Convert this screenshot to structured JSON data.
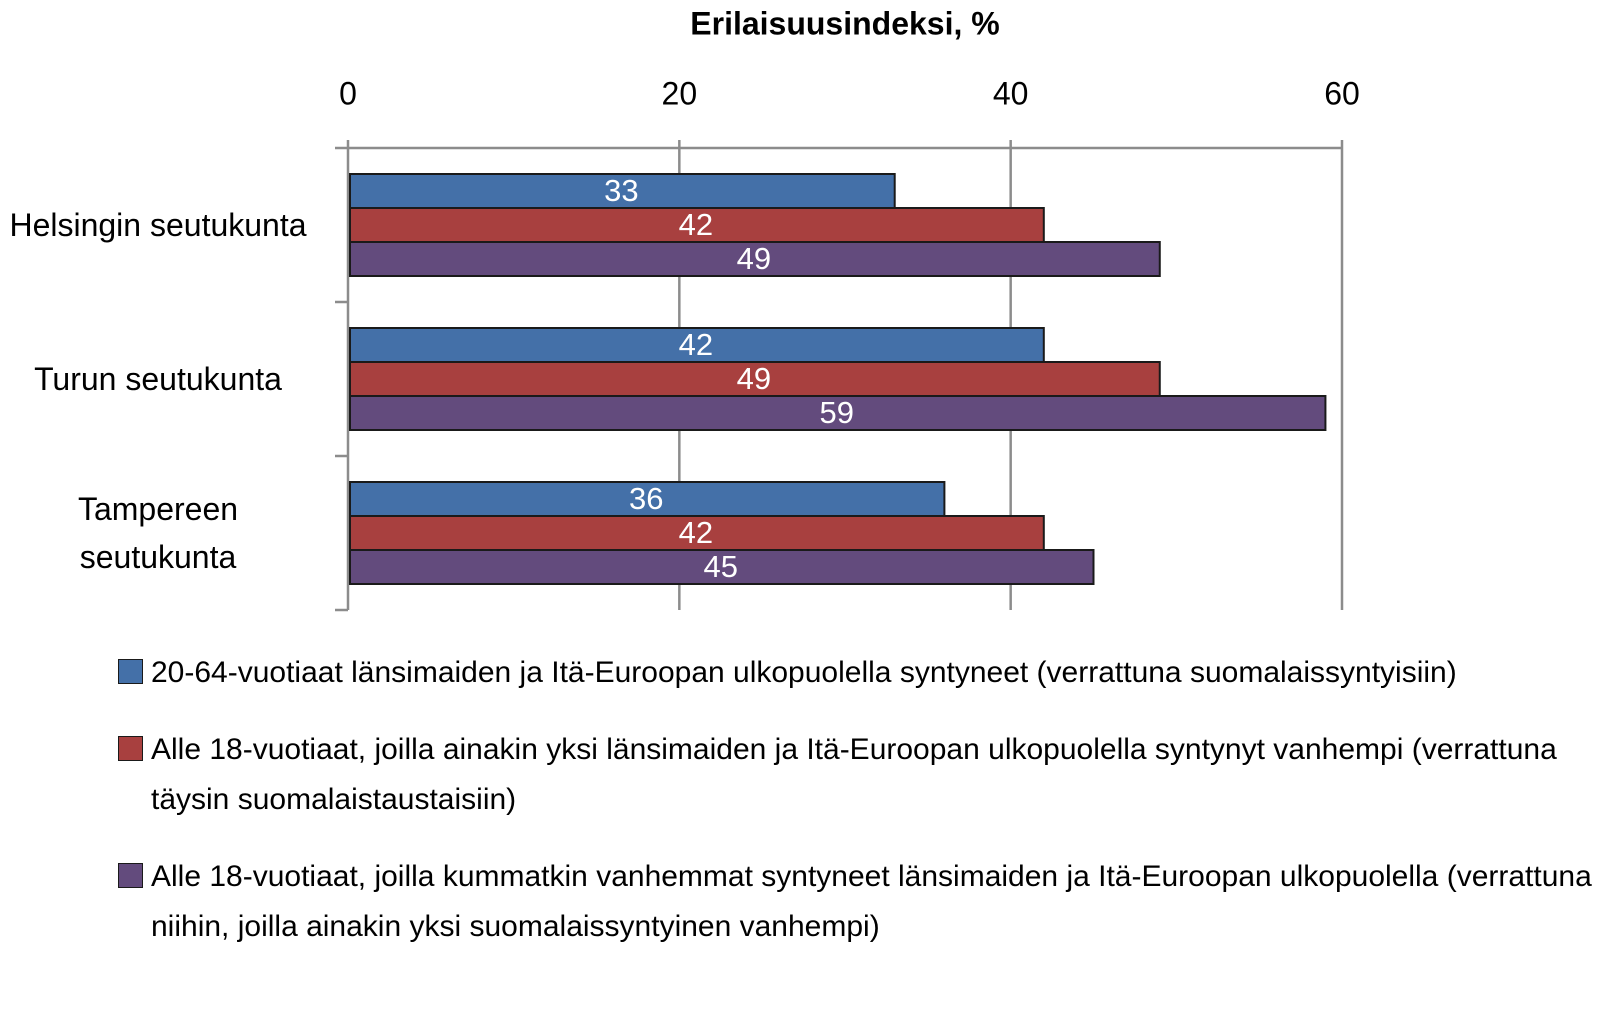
{
  "chart_data": {
    "type": "bar",
    "orientation": "horizontal",
    "title": "Erilaisuusindeksi, %",
    "categories": [
      "Helsingin seutukunta",
      "Turun seutukunta",
      "Tampereen seutukunta"
    ],
    "series": [
      {
        "name": "20-64-vuotiaat länsimaiden ja Itä-Euroopan ulkopuolella syntyneet (verrattuna suomalaissyntyisiin)",
        "color": "#4470a8",
        "values": [
          33,
          42,
          36
        ]
      },
      {
        "name": "Alle 18-vuotiaat, joilla ainakin yksi länsimaiden ja Itä-Euroopan ulkopuolella syntynyt vanhempi (verrattuna täysin suomalaistaustaisiin)",
        "color": "#a8403f",
        "values": [
          42,
          49,
          42
        ]
      },
      {
        "name": "Alle 18-vuotiaat, joilla kummatkin vanhemmat syntyneet länsimaiden ja Itä-Euroopan ulkopuolella (verrattuna niihin, joilla ainakin yksi suomalaissyntyinen vanhempi)",
        "color": "#634b7d",
        "values": [
          49,
          59,
          45
        ]
      }
    ],
    "xlim": [
      0,
      60
    ],
    "xticks": [
      0,
      20,
      40,
      60
    ],
    "grid": true,
    "legend": "bottom"
  }
}
